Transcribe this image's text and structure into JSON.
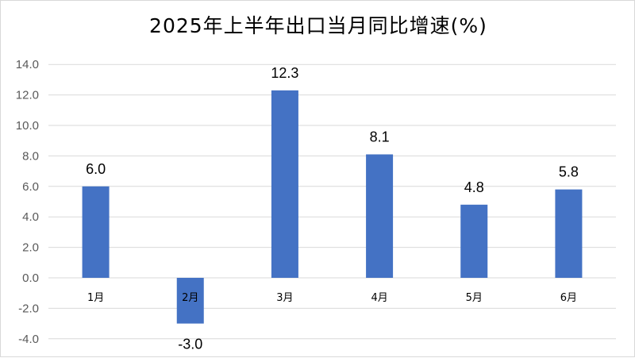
{
  "chart_data": {
    "type": "bar",
    "title": "2025年上半年出口当月同比增速(%)",
    "categories": [
      "1月",
      "2月",
      "3月",
      "4月",
      "5月",
      "6月"
    ],
    "values": [
      6.0,
      -3.0,
      12.3,
      8.1,
      4.8,
      5.8
    ],
    "data_labels": [
      "6.0",
      "-3.0",
      "12.3",
      "8.1",
      "4.8",
      "5.8"
    ],
    "y_ticks": [
      "-4.0",
      "-2.0",
      "0.0",
      "2.0",
      "4.0",
      "6.0",
      "8.0",
      "10.0",
      "12.0",
      "14.0"
    ],
    "ylim": [
      -4,
      14
    ],
    "xlabel": "",
    "ylabel": "",
    "grid": true,
    "legend": "none",
    "bar_color": "#4472C4"
  }
}
